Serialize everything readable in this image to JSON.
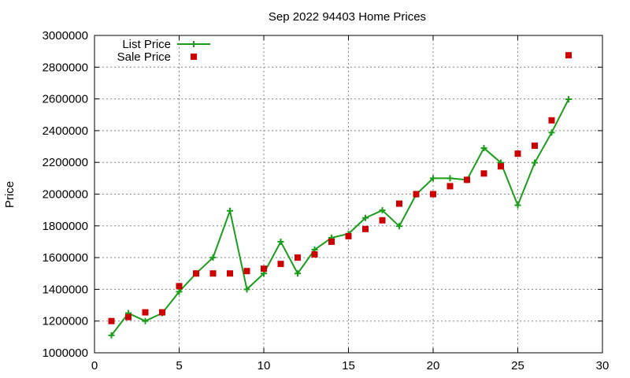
{
  "chart_data": {
    "type": "line",
    "title": "Sep 2022 94403 Home Prices",
    "xlabel": "",
    "ylabel": "Price",
    "xlim": [
      0,
      30
    ],
    "ylim": [
      1000000,
      3000000
    ],
    "xticks": [
      0,
      5,
      10,
      15,
      20,
      25,
      30
    ],
    "yticks": [
      1000000,
      1200000,
      1400000,
      1600000,
      1800000,
      2000000,
      2200000,
      2400000,
      2600000,
      2800000,
      3000000
    ],
    "grid": true,
    "legend_position": "top-left",
    "series": [
      {
        "name": "List Price",
        "style": "line-plus",
        "color": "#1a9e1a",
        "points": [
          [
            1,
            1110000
          ],
          [
            2,
            1250000
          ],
          [
            3,
            1200000
          ],
          [
            4,
            1250000
          ],
          [
            5,
            1385000
          ],
          [
            6,
            1500000
          ],
          [
            7,
            1600000
          ],
          [
            8,
            1895000
          ],
          [
            9,
            1400000
          ],
          [
            10,
            1500000
          ],
          [
            11,
            1700000
          ],
          [
            12,
            1500000
          ],
          [
            13,
            1650000
          ],
          [
            14,
            1725000
          ],
          [
            15,
            1750000
          ],
          [
            16,
            1850000
          ],
          [
            17,
            1898000
          ],
          [
            18,
            1798000
          ],
          [
            19,
            1998000
          ],
          [
            20,
            2100000
          ],
          [
            21,
            2100000
          ],
          [
            22,
            2090000
          ],
          [
            23,
            2290000
          ],
          [
            24,
            2198000
          ],
          [
            25,
            1930000
          ],
          [
            26,
            2198000
          ],
          [
            27,
            2388000
          ],
          [
            28,
            2598000
          ]
        ]
      },
      {
        "name": "Sale Price",
        "style": "square",
        "color": "#cc0000",
        "points": [
          [
            1,
            1200000
          ],
          [
            2,
            1225000
          ],
          [
            3,
            1255000
          ],
          [
            4,
            1255000
          ],
          [
            5,
            1420000
          ],
          [
            6,
            1500000
          ],
          [
            7,
            1500000
          ],
          [
            8,
            1500000
          ],
          [
            9,
            1515000
          ],
          [
            10,
            1530000
          ],
          [
            11,
            1560000
          ],
          [
            12,
            1600000
          ],
          [
            13,
            1620000
          ],
          [
            14,
            1700000
          ],
          [
            15,
            1735000
          ],
          [
            16,
            1780000
          ],
          [
            17,
            1835000
          ],
          [
            18,
            1940000
          ],
          [
            19,
            2000000
          ],
          [
            20,
            2000000
          ],
          [
            21,
            2050000
          ],
          [
            22,
            2090000
          ],
          [
            23,
            2130000
          ],
          [
            24,
            2175000
          ],
          [
            25,
            2255000
          ],
          [
            26,
            2305000
          ],
          [
            27,
            2465000
          ],
          [
            28,
            2875000
          ]
        ]
      }
    ]
  }
}
